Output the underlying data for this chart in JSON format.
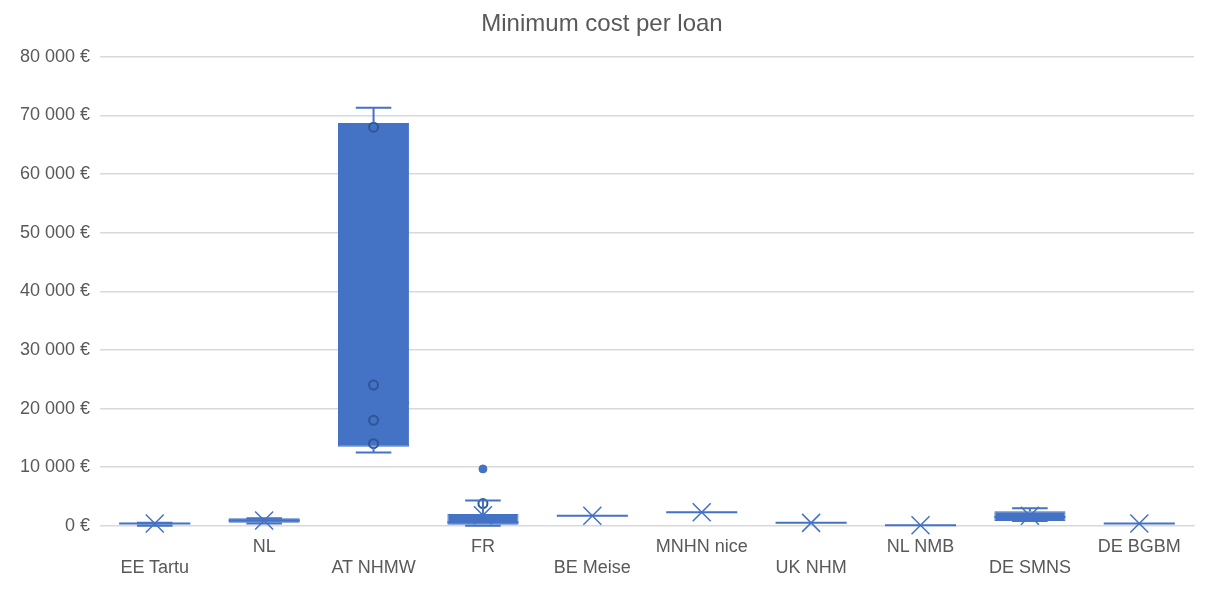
{
  "chart_data": {
    "type": "box",
    "title": "Minimum cost per loan",
    "categories": [
      "EE Tartu",
      "NL",
      "AT NHMW",
      "FR",
      "BE Meise",
      "MNHN nice",
      "UK NHM",
      "NL NMB",
      "DE SMNS",
      "DE BGBM"
    ],
    "series": [
      {
        "color": "#4472c4",
        "boxes": [
          {
            "low": 0,
            "q1": 300,
            "median": 400,
            "q3": 500,
            "high": 500,
            "mean": 400
          },
          {
            "low": 400,
            "q1": 500,
            "median": 900,
            "q3": 1300,
            "high": 1300,
            "mean": 900
          },
          {
            "low": 12500,
            "q1": 13500,
            "median": 21000,
            "q3": 68700,
            "high": 71300,
            "mean": 34500
          },
          {
            "low": 0,
            "q1": 200,
            "median": 600,
            "q3": 2000,
            "high": 4300,
            "mean": 1800,
            "outliers": [
              9700
            ]
          },
          {
            "low": 1700,
            "q1": 1700,
            "median": 1700,
            "q3": 1700,
            "high": 1700,
            "mean": 1700
          },
          {
            "low": 2300,
            "q1": 2300,
            "median": 2300,
            "q3": 2300,
            "high": 2300,
            "mean": 2300
          },
          {
            "low": 500,
            "q1": 500,
            "median": 500,
            "q3": 500,
            "high": 500,
            "mean": 500
          },
          {
            "low": 100,
            "q1": 100,
            "median": 100,
            "q3": 100,
            "high": 100,
            "mean": 100
          },
          {
            "low": 800,
            "q1": 800,
            "median": 1500,
            "q3": 2500,
            "high": 3000,
            "mean": 1700
          },
          {
            "low": 400,
            "q1": 400,
            "median": 400,
            "q3": 400,
            "high": 400,
            "mean": 400
          }
        ]
      },
      {
        "type": "scatter",
        "color": "#2f5597",
        "x": [
          "AT NHMW",
          "AT NHMW",
          "AT NHMW",
          "AT NHMW",
          "FR"
        ],
        "values": [
          68000,
          24000,
          18000,
          14000,
          3800
        ]
      }
    ],
    "ylim": [
      0,
      80000
    ],
    "yticks": [
      {
        "value": 0,
        "label": "0 €"
      },
      {
        "value": 10000,
        "label": "10 000 €"
      },
      {
        "value": 20000,
        "label": "20 000 €"
      },
      {
        "value": 30000,
        "label": "30 000 €"
      },
      {
        "value": 40000,
        "label": "40 000 €"
      },
      {
        "value": 50000,
        "label": "50 000 €"
      },
      {
        "value": 60000,
        "label": "60 000 €"
      },
      {
        "value": 70000,
        "label": "70 000 €"
      },
      {
        "value": 80000,
        "label": "80 000 €"
      }
    ],
    "grid": "y",
    "legend": false,
    "marker": "circle"
  }
}
